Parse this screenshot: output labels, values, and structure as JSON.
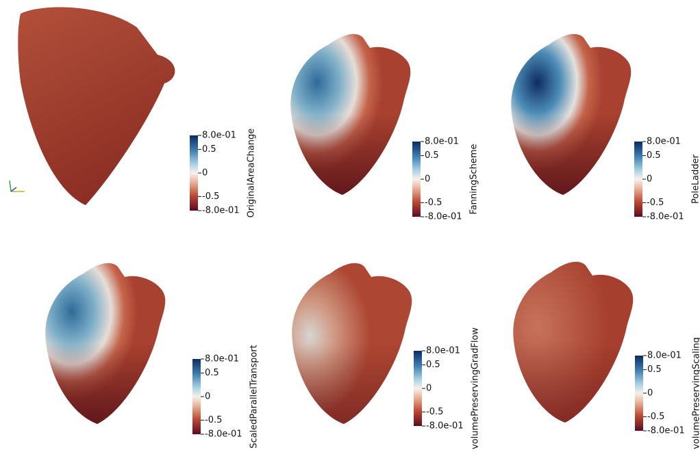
{
  "panels": [
    {
      "label": "OriginalAreaChange",
      "ticks": [
        {
          "value": 0.8,
          "label": "8.0e-01"
        },
        0.5,
        0,
        -0.5,
        {
          "value": -0.8,
          "label": "-8.0e-01"
        }
      ]
    },
    {
      "label": "FanningScheme",
      "ticks": [
        {
          "value": 0.8,
          "label": "8.0e-01"
        },
        0.5,
        0,
        -0.5,
        {
          "value": -0.8,
          "label": "-8.0e-01"
        }
      ]
    },
    {
      "label": "PoleLadder",
      "ticks": [
        {
          "value": 0.8,
          "label": "8.0e-01"
        },
        0.5,
        0,
        -0.5,
        {
          "value": -0.8,
          "label": "-8.0e-01"
        }
      ]
    },
    {
      "label": "ScaledParallelTransport",
      "ticks": [
        {
          "value": 0.8,
          "label": "8.0e-01"
        },
        0.5,
        0,
        -0.5,
        {
          "value": -0.8,
          "label": "-8.0e-01"
        }
      ]
    },
    {
      "label": "volumePreservingGradFlow",
      "ticks": [
        {
          "value": 0.8,
          "label": "8.0e-01"
        },
        0.5,
        0,
        -0.5,
        {
          "value": -0.8,
          "label": "-8.0e-01"
        }
      ]
    },
    {
      "label": "volumePreservingScaling",
      "ticks": [
        {
          "value": 0.8,
          "label": "8.0e-01"
        },
        0.5,
        0,
        -0.5,
        {
          "value": -0.8,
          "label": "-8.0e-01"
        }
      ]
    }
  ]
}
